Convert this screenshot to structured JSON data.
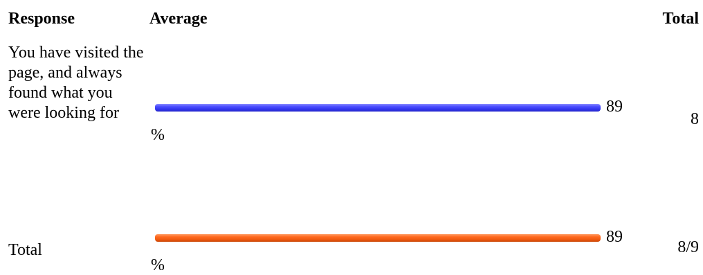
{
  "headers": {
    "response": "Response",
    "average": "Average",
    "total": "Total"
  },
  "rows": [
    {
      "label": "You have visited the page, and always found what you were looking for",
      "percent_number": "89",
      "percent_sign": "%",
      "total": "8",
      "bar_color": "#3a3cf5"
    },
    {
      "label": "Total",
      "percent_number": "89",
      "percent_sign": "%",
      "total": "8/9",
      "bar_color": "#ff6414"
    }
  ],
  "chart_data": {
    "type": "bar",
    "orientation": "horizontal",
    "categories": [
      "You have visited the page, and always found what you were looking for",
      "Total"
    ],
    "values": [
      89,
      89
    ],
    "unit": "%",
    "xlim": [
      0,
      100
    ],
    "title": "",
    "xlabel": "",
    "ylabel": "",
    "totals": [
      "8",
      "8/9"
    ],
    "colors": [
      "#3a3cf5",
      "#ff6414"
    ],
    "grid": false
  }
}
